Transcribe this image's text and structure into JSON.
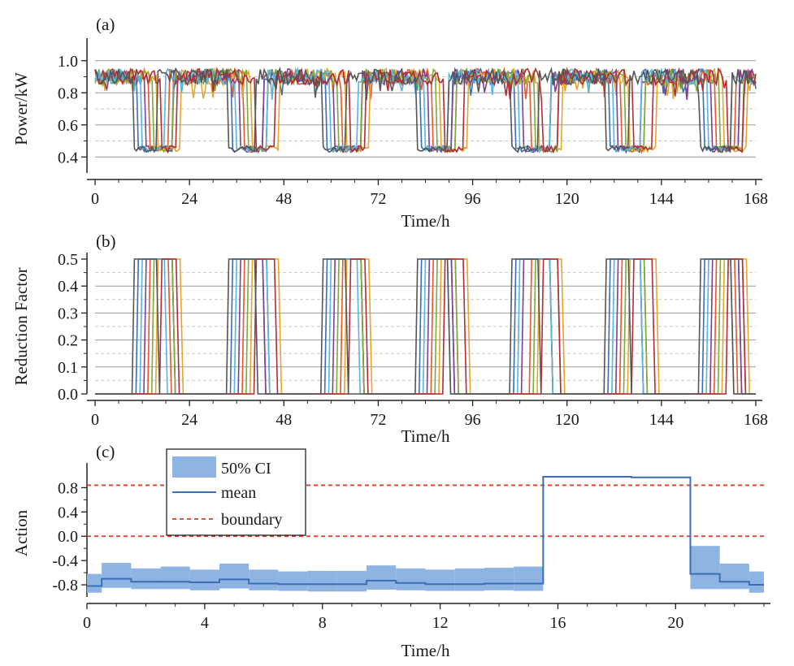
{
  "chart_data": [
    {
      "panel": "(a)",
      "type": "line",
      "xlabel": "Time/h",
      "ylabel": "Power/kW",
      "xlim": [
        0,
        168
      ],
      "ylim": [
        0.3,
        1.1
      ],
      "xticks": [
        0,
        24,
        48,
        72,
        96,
        120,
        144,
        168
      ],
      "yticks": [
        0.4,
        0.6,
        0.8,
        1.0
      ],
      "ytick_labels": [
        "0.4",
        "0.6",
        "0.8",
        "1.0"
      ],
      "grid": {
        "major": [
          0.4,
          0.6,
          0.8,
          1.0
        ],
        "minor": [
          0.5,
          0.7,
          0.9
        ]
      },
      "series_colors": [
        "#3a6fb5",
        "#e8572a",
        "#e5a52a",
        "#7f3f8f",
        "#7aab3b",
        "#55b6e0",
        "#b32a3a",
        "#555555"
      ],
      "daily_high": 0.9,
      "daily_low": 0.45,
      "dip_starts": [
        [
          11,
          35,
          59,
          83,
          107,
          131,
          155
        ],
        [
          14,
          38,
          63,
          86,
          111,
          134,
          158
        ],
        [
          16,
          40,
          64,
          88,
          113,
          136,
          160
        ],
        [
          13,
          37,
          61,
          85,
          109,
          133,
          157
        ],
        [
          15,
          39,
          62,
          87,
          112,
          135,
          159
        ],
        [
          12,
          36,
          60,
          84,
          108,
          132,
          156
        ],
        [
          17,
          41,
          65,
          89,
          114,
          137,
          161
        ],
        [
          10,
          34,
          58,
          82,
          106,
          130,
          154
        ]
      ],
      "dip_lengths": [
        [
          9,
          8,
          9,
          8,
          9,
          8,
          9
        ],
        [
          5,
          6,
          5,
          6,
          5,
          6,
          5
        ],
        [
          6,
          7,
          6,
          7,
          6,
          7,
          6
        ],
        [
          7,
          6,
          7,
          6,
          7,
          6,
          7
        ],
        [
          5,
          5,
          6,
          5,
          6,
          5,
          6
        ],
        [
          6,
          8,
          7,
          6,
          8,
          7,
          6
        ],
        [
          4,
          5,
          4,
          5,
          4,
          5,
          4
        ],
        [
          6,
          7,
          6,
          8,
          7,
          6,
          8
        ]
      ]
    },
    {
      "panel": "(b)",
      "type": "line",
      "xlabel": "Time/h",
      "ylabel": "Reduction Factor",
      "xlim": [
        0,
        168
      ],
      "ylim": [
        0,
        0.5
      ],
      "xticks": [
        0,
        24,
        48,
        72,
        96,
        120,
        144,
        168
      ],
      "yticks": [
        0.0,
        0.1,
        0.2,
        0.3,
        0.4,
        0.5
      ],
      "ytick_labels": [
        "0.0",
        "0.1",
        "0.2",
        "0.3",
        "0.4",
        "0.5"
      ],
      "grid": {
        "major": [
          0.1,
          0.2,
          0.3,
          0.4
        ],
        "minor": [
          0.05,
          0.15,
          0.25,
          0.35,
          0.45
        ]
      },
      "active_value": 0.5,
      "inactive_value": 0.0,
      "note": "reduction = 0.5 during each series' dip window in panel (a), else 0.0"
    },
    {
      "panel": "(c)",
      "type": "line",
      "xlabel": "Time/h",
      "ylabel": "Action",
      "xlim": [
        0,
        23
      ],
      "ylim": [
        -1.0,
        1.1
      ],
      "xticks": [
        0,
        4,
        8,
        12,
        16,
        20
      ],
      "yticks": [
        -0.8,
        -0.4,
        0.0,
        0.4,
        0.8
      ],
      "ytick_labels": [
        "-0.8",
        "-0.4",
        "0.0",
        "0.4",
        "0.8"
      ],
      "step_x": [
        0,
        0.5,
        1.5,
        2.5,
        3.5,
        4.5,
        5.5,
        6.5,
        7.5,
        8.5,
        9.5,
        10.5,
        11.5,
        12.5,
        13.5,
        14.5,
        15.5,
        16.5,
        17.5,
        18.5,
        19.5,
        20.5,
        21.5,
        22.5,
        23
      ],
      "series": [
        {
          "name": "mean",
          "color": "#3a6fb5",
          "values": [
            -0.82,
            -0.7,
            -0.75,
            -0.75,
            -0.76,
            -0.71,
            -0.78,
            -0.79,
            -0.79,
            -0.79,
            -0.73,
            -0.77,
            -0.79,
            -0.79,
            -0.78,
            -0.78,
            0.98,
            0.98,
            0.98,
            0.97,
            0.97,
            -0.62,
            -0.75,
            -0.8
          ]
        },
        {
          "name": "50% CI",
          "color": "#8eb4e3",
          "lower": [
            -0.93,
            -0.85,
            -0.87,
            -0.87,
            -0.89,
            -0.86,
            -0.89,
            -0.9,
            -0.91,
            -0.91,
            -0.88,
            -0.89,
            -0.9,
            -0.9,
            -0.89,
            -0.9,
            0.98,
            0.98,
            0.98,
            0.97,
            0.97,
            -0.87,
            -0.87,
            -0.93
          ],
          "upper": [
            -0.62,
            -0.44,
            -0.53,
            -0.5,
            -0.55,
            -0.45,
            -0.55,
            -0.58,
            -0.57,
            -0.57,
            -0.48,
            -0.53,
            -0.55,
            -0.53,
            -0.52,
            -0.5,
            0.98,
            0.98,
            0.98,
            0.97,
            0.97,
            -0.16,
            -0.45,
            -0.58
          ]
        },
        {
          "name": "boundary",
          "color": "#e03a2a",
          "values": [
            0.84,
            0.0
          ]
        }
      ],
      "legend": {
        "placement": "top-left",
        "entries": [
          "50% CI",
          "mean",
          "boundary"
        ]
      }
    }
  ]
}
